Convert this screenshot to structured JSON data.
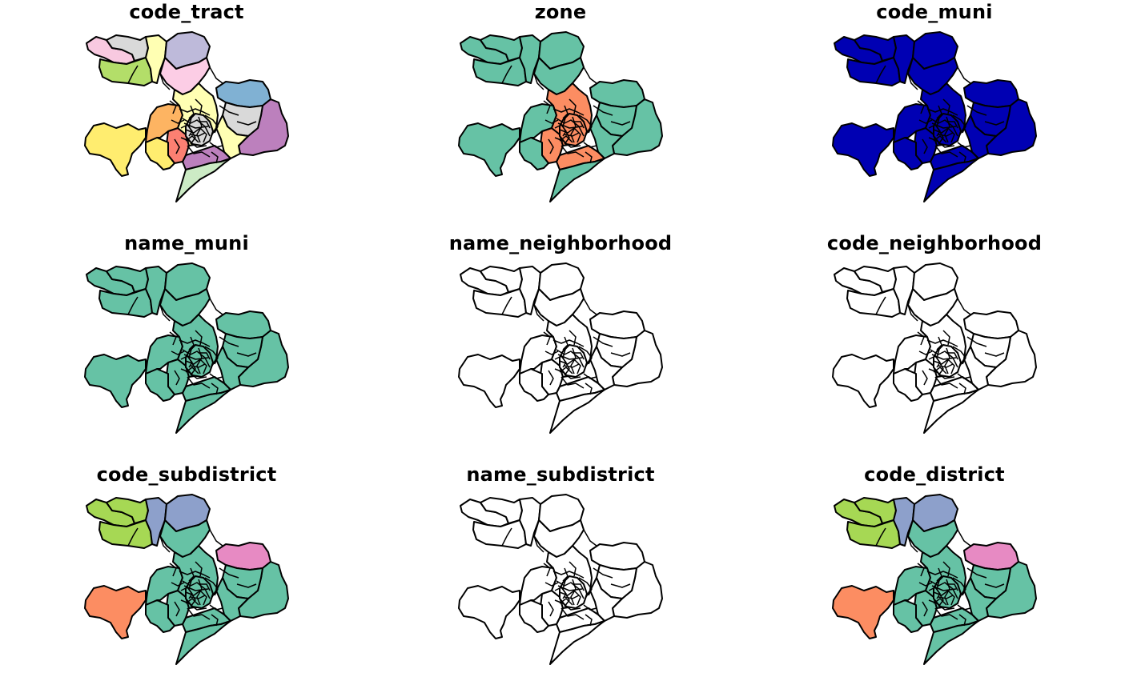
{
  "panels": [
    {
      "title": "code_tract",
      "fill": "multi",
      "region_colors": {
        "westLoop": "#f8c9e0",
        "northStrip": "#d9d9d9",
        "northYellow": "#ffffb3",
        "northLavender": "#bebada",
        "northPink": "#fccde5",
        "westGreen": "#b3de69",
        "eastBlue": "#80b1d3",
        "eastPurple": "#bc80bd",
        "eastGrey": "#d9d9d9",
        "eastYellow": "#ffffb3",
        "southPurple": "#bc80bd",
        "southGreen": "#ccebc5",
        "southRed": "#fb8072",
        "southYellow": "#ffed6f",
        "farWest": "#ffed6f",
        "centerOrange": "#fdb462",
        "centerLight": "#ffffb3",
        "core": "#d9d9d9"
      }
    },
    {
      "title": "zone",
      "fill": "multi",
      "region_colors": {
        "westLoop": "#66c2a5",
        "northStrip": "#66c2a5",
        "northYellow": "#66c2a5",
        "northLavender": "#66c2a5",
        "northPink": "#66c2a5",
        "westGreen": "#66c2a5",
        "eastBlue": "#66c2a5",
        "eastPurple": "#66c2a5",
        "eastGrey": "#66c2a5",
        "eastYellow": "#66c2a5",
        "southPurple": "#fc8d62",
        "southGreen": "#66c2a5",
        "southRed": "#fc8d62",
        "southYellow": "#66c2a5",
        "farWest": "#66c2a5",
        "centerOrange": "#66c2a5",
        "centerLight": "#fc8d62",
        "core": "#fc8d62"
      }
    },
    {
      "title": "code_muni",
      "fill": "single",
      "color": "#0000b3"
    },
    {
      "title": "name_muni",
      "fill": "single",
      "color": "#66c2a5"
    },
    {
      "title": "name_neighborhood",
      "fill": "single",
      "color": "#ffffff"
    },
    {
      "title": "code_neighborhood",
      "fill": "single",
      "color": "#ffffff"
    },
    {
      "title": "code_subdistrict",
      "fill": "multi",
      "region_colors": {
        "westLoop": "#a6d854",
        "northStrip": "#a6d854",
        "northYellow": "#8da0cb",
        "northLavender": "#8da0cb",
        "northPink": "#66c2a5",
        "westGreen": "#a6d854",
        "eastBlue": "#e78ac3",
        "eastPurple": "#66c2a5",
        "eastGrey": "#66c2a5",
        "eastYellow": "#66c2a5",
        "southPurple": "#66c2a5",
        "southGreen": "#66c2a5",
        "southRed": "#66c2a5",
        "southYellow": "#66c2a5",
        "farWest": "#fc8d62",
        "centerOrange": "#66c2a5",
        "centerLight": "#66c2a5",
        "core": "#66c2a5"
      }
    },
    {
      "title": "name_subdistrict",
      "fill": "single",
      "color": "#ffffff"
    },
    {
      "title": "code_district",
      "fill": "multi",
      "region_colors": {
        "westLoop": "#a6d854",
        "northStrip": "#a6d854",
        "northYellow": "#8da0cb",
        "northLavender": "#8da0cb",
        "northPink": "#66c2a5",
        "westGreen": "#a6d854",
        "eastBlue": "#e78ac3",
        "eastPurple": "#66c2a5",
        "eastGrey": "#66c2a5",
        "eastYellow": "#66c2a5",
        "southPurple": "#66c2a5",
        "southGreen": "#66c2a5",
        "southRed": "#66c2a5",
        "southYellow": "#66c2a5",
        "farWest": "#fc8d62",
        "centerOrange": "#66c2a5",
        "centerLight": "#66c2a5",
        "core": "#66c2a5"
      }
    }
  ]
}
